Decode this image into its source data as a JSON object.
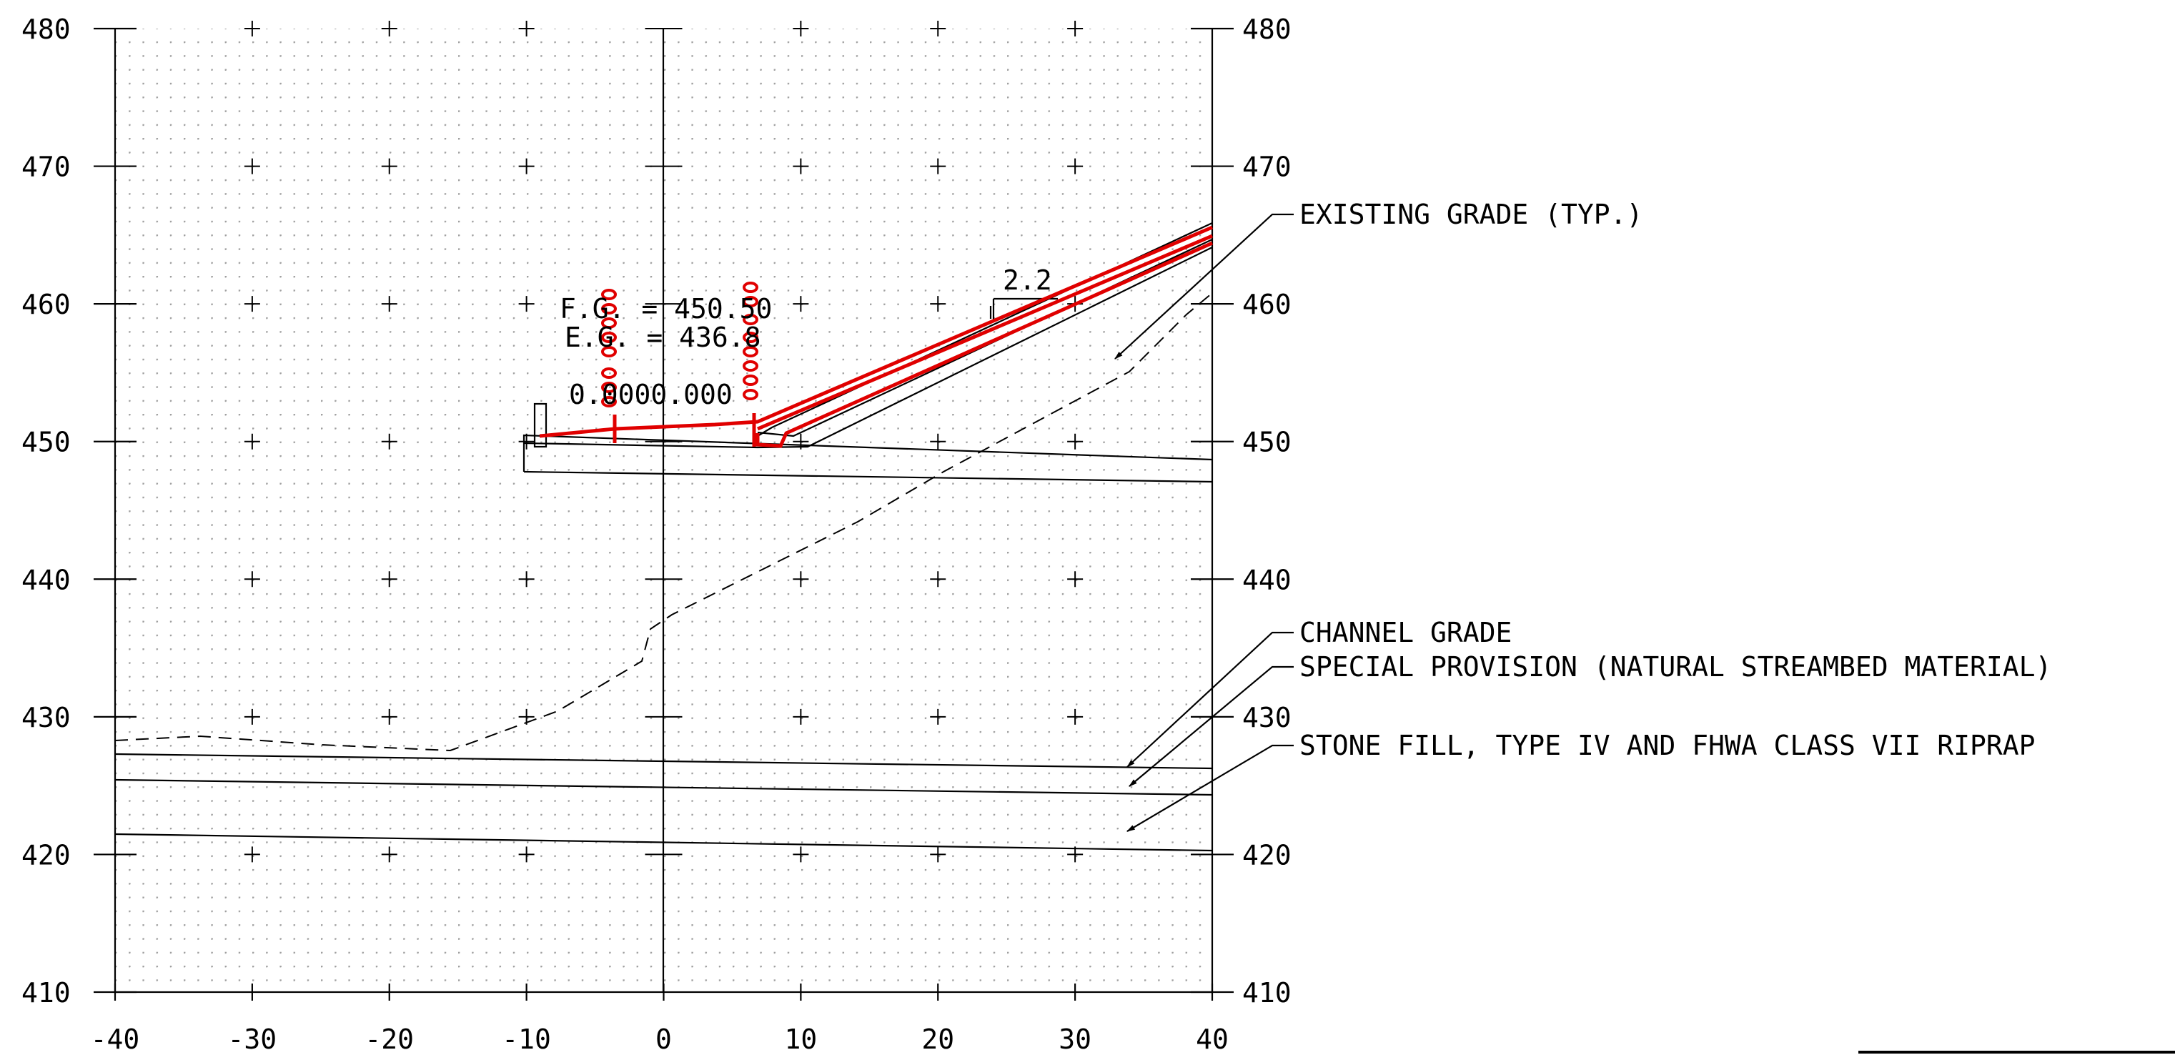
{
  "axes": {
    "x_min": -40,
    "x_max": 40,
    "x_step": 10,
    "y_min": 410,
    "y_max": 480,
    "y_step": 10,
    "x_labels": [
      "-40",
      "-30",
      "-20",
      "-10",
      "0",
      "10",
      "20",
      "30",
      "40"
    ],
    "y_labels": [
      "410",
      "420",
      "430",
      "440",
      "450",
      "460",
      "470",
      "480"
    ]
  },
  "annotations": {
    "fg": "F.G. = 450.50",
    "eg": "E.G. = 436.8",
    "offset": "0.0000.000",
    "slope": "2.2"
  },
  "callouts": {
    "existing_grade": "EXISTING GRADE (TYP.)",
    "channel_grade": "CHANNEL GRADE",
    "special_provision": "SPECIAL PROVISION (NATURAL STREAMBED MATERIAL)",
    "stone_fill": "STONE FILL, TYPE IV AND FHWA CLASS VII RIPRAP"
  },
  "colors": {
    "design": "#e00000",
    "ink": "#000000",
    "grid_dot": "#9a9a9a"
  }
}
